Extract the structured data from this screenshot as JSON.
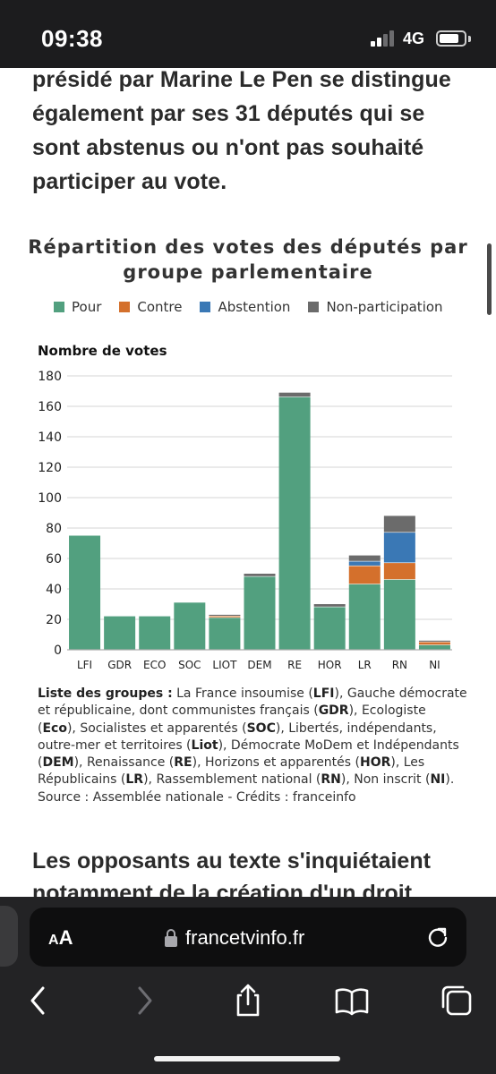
{
  "status_bar": {
    "time": "09:38",
    "network": "4G",
    "battery_level": 0.8,
    "signal_bars_active": 2
  },
  "article": {
    "paragraph_lines": [
      "présidé par Marine Le Pen se distingue",
      "également par ses 31 députés qui se",
      "sont abstenus ou n'ont pas souhaité",
      "participer au vote."
    ],
    "next_heading_lines": [
      "Les opposants au texte s'inquiétaient",
      "notamment de la création d'un droit"
    ]
  },
  "chart_data": {
    "type": "bar",
    "stacked": true,
    "title": "Répartition des votes des députés par groupe parlementaire",
    "title_lines": [
      "Répartition des votes des députés par",
      "groupe parlementaire"
    ],
    "ylabel": "Nombre de votes",
    "xlabel": "",
    "ylim": [
      0,
      180
    ],
    "yticks": [
      0,
      20,
      40,
      60,
      80,
      100,
      120,
      140,
      160,
      180
    ],
    "grid": true,
    "legend_position": "top",
    "categories": [
      "LFI",
      "GDR",
      "ECO",
      "SOC",
      "LIOT",
      "DEM",
      "RE",
      "HOR",
      "LR",
      "RN",
      "NI"
    ],
    "series": [
      {
        "name": "Pour",
        "color": "#52a07f",
        "values": [
          75,
          22,
          22,
          31,
          21,
          48,
          166,
          28,
          43,
          46,
          3
        ]
      },
      {
        "name": "Contre",
        "color": "#d4702c",
        "values": [
          0,
          0,
          0,
          0,
          1,
          0,
          0,
          0,
          12,
          11,
          2
        ]
      },
      {
        "name": "Abstention",
        "color": "#3a78b5",
        "values": [
          0,
          0,
          0,
          0,
          0,
          0,
          0,
          0,
          3,
          20,
          0
        ]
      },
      {
        "name": "Non-participation",
        "color": "#6b6b6b",
        "values": [
          0,
          0,
          0,
          0,
          1,
          2,
          3,
          2,
          4,
          11,
          1
        ]
      }
    ]
  },
  "groups_note": {
    "lead": "Liste des groupes :",
    "segments": [
      {
        "text": " La France insoumise (",
        "bold": false
      },
      {
        "text": "LFI",
        "bold": true
      },
      {
        "text": "), Gauche démocrate et républicaine, dont communistes français (",
        "bold": false
      },
      {
        "text": "GDR",
        "bold": true
      },
      {
        "text": "), Ecologiste (",
        "bold": false
      },
      {
        "text": "Eco",
        "bold": true
      },
      {
        "text": "), Socialistes et apparentés (",
        "bold": false
      },
      {
        "text": "SOC",
        "bold": true
      },
      {
        "text": "), Libertés, indépendants, outre-mer et territoires (",
        "bold": false
      },
      {
        "text": "Liot",
        "bold": true
      },
      {
        "text": "), Démocrate MoDem et Indépendants (",
        "bold": false
      },
      {
        "text": "DEM",
        "bold": true
      },
      {
        "text": "), Renaissance (",
        "bold": false
      },
      {
        "text": "RE",
        "bold": true
      },
      {
        "text": "), Horizons et apparentés (",
        "bold": false
      },
      {
        "text": "HOR",
        "bold": true
      },
      {
        "text": "), Les Républicains (",
        "bold": false
      },
      {
        "text": "LR",
        "bold": true
      },
      {
        "text": "), Rassemblement national (",
        "bold": false
      },
      {
        "text": "RN",
        "bold": true
      },
      {
        "text": "), Non inscrit (",
        "bold": false
      },
      {
        "text": "NI",
        "bold": true
      },
      {
        "text": ").",
        "bold": false
      }
    ],
    "source": "Source : Assemblée nationale - Crédits : franceinfo"
  },
  "browser": {
    "aa_small": "A",
    "aa_large": "A",
    "url": "francetvinfo.fr",
    "icons": [
      "lock-icon",
      "reload-icon",
      "back-icon",
      "forward-icon",
      "share-icon",
      "bookmarks-icon",
      "tabs-icon"
    ]
  }
}
